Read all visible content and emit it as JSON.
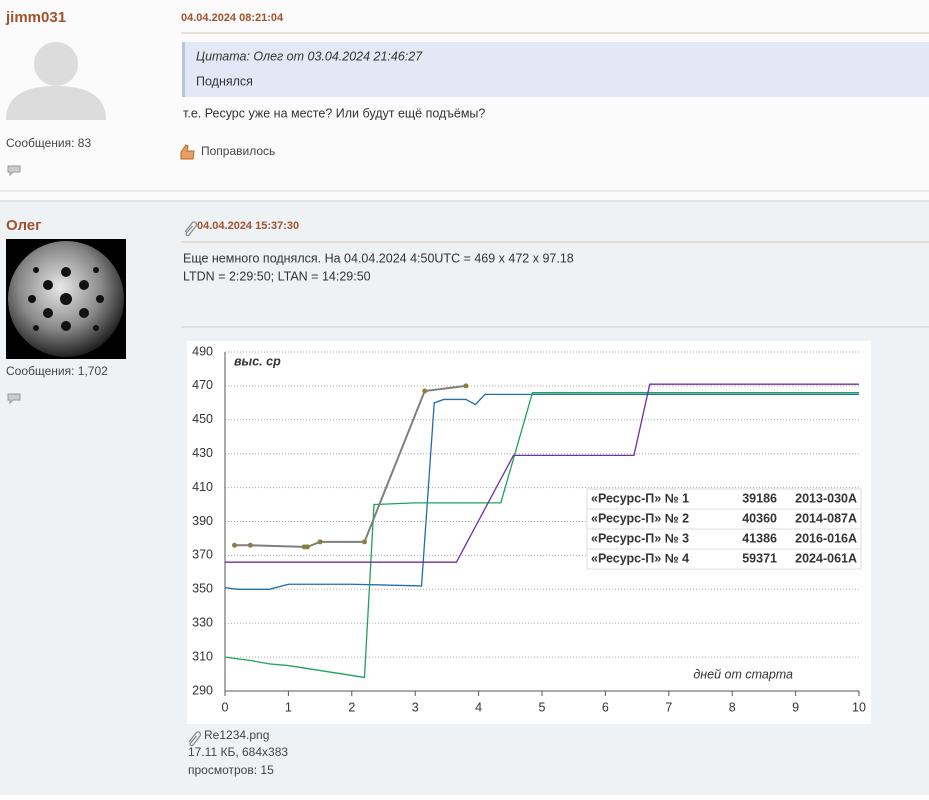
{
  "posts": [
    {
      "author": "jimm031",
      "messages": "Сообщения: 83",
      "date": "04.04.2024 08:21:04",
      "quote": {
        "header": "Цитата: Олег от 03.04.2024 21:46:27",
        "text": "Поднялся"
      },
      "text": "т.е. Ресурс уже на месте? Или будут ещё подъёмы?",
      "like": "Поправилось"
    },
    {
      "author": "Олег",
      "messages": "Сообщения: 1,702",
      "date": "04.04.2024 15:37:30",
      "lines": [
        "Еще немного поднялся. На 04.04.2024 4:50UTC = 469 x 472 x 97.18",
        "LTDN = 2:29:50; LTAN = 14:29:50"
      ],
      "attachment": {
        "filename": "Re1234.png",
        "info": "17.11 КБ, 684x383",
        "views": "просмотров: 15"
      }
    }
  ],
  "chart_data": {
    "type": "line",
    "y_label": "выс. ср",
    "x_label": "дней от старта",
    "xlim": [
      0,
      10
    ],
    "ylim": [
      290,
      490
    ],
    "xticks": [
      0,
      1,
      2,
      3,
      4,
      5,
      6,
      7,
      8,
      9,
      10
    ],
    "yticks": [
      290,
      310,
      330,
      350,
      370,
      390,
      410,
      430,
      450,
      470,
      490
    ],
    "grid": true,
    "series": [
      {
        "name": "«Ресурс-П» № 1",
        "norad": "39186",
        "cospar": "2013-030A",
        "color": "#1f6fad",
        "x": [
          0,
          0.2,
          0.7,
          1,
          2,
          3.1,
          3.3,
          3.45,
          3.8,
          3.95,
          4.1,
          5,
          10
        ],
        "values": [
          351,
          350,
          350,
          353,
          353,
          352,
          460,
          462,
          462,
          459,
          465,
          465,
          465
        ]
      },
      {
        "name": "«Ресурс-П» № 2",
        "norad": "40360",
        "cospar": "2014-087A",
        "color": "#1fa35a",
        "x": [
          0,
          0.4,
          0.7,
          1,
          2.2,
          2.35,
          3,
          4.35,
          4.85,
          10
        ],
        "values": [
          310,
          308,
          306,
          305,
          298,
          400,
          401,
          401,
          466,
          466
        ]
      },
      {
        "name": "«Ресурс-П» № 3",
        "norad": "41386",
        "cospar": "2016-016A",
        "color": "#7030a0",
        "x": [
          0,
          1,
          3.65,
          4.55,
          6.45,
          6.7,
          10
        ],
        "values": [
          366,
          366,
          366,
          429,
          429,
          471,
          471
        ]
      },
      {
        "name": "«Ресурс-П» № 4",
        "norad": "59371",
        "cospar": "2024-061A",
        "color": "#7f7f7f",
        "markers": true,
        "marker_color": "#8c7e3c",
        "x": [
          0.15,
          0.4,
          1.25,
          1.3,
          1.5,
          2.2,
          3.15,
          3.8
        ],
        "values": [
          376,
          376,
          375,
          375,
          378,
          378,
          467,
          470
        ]
      }
    ]
  }
}
